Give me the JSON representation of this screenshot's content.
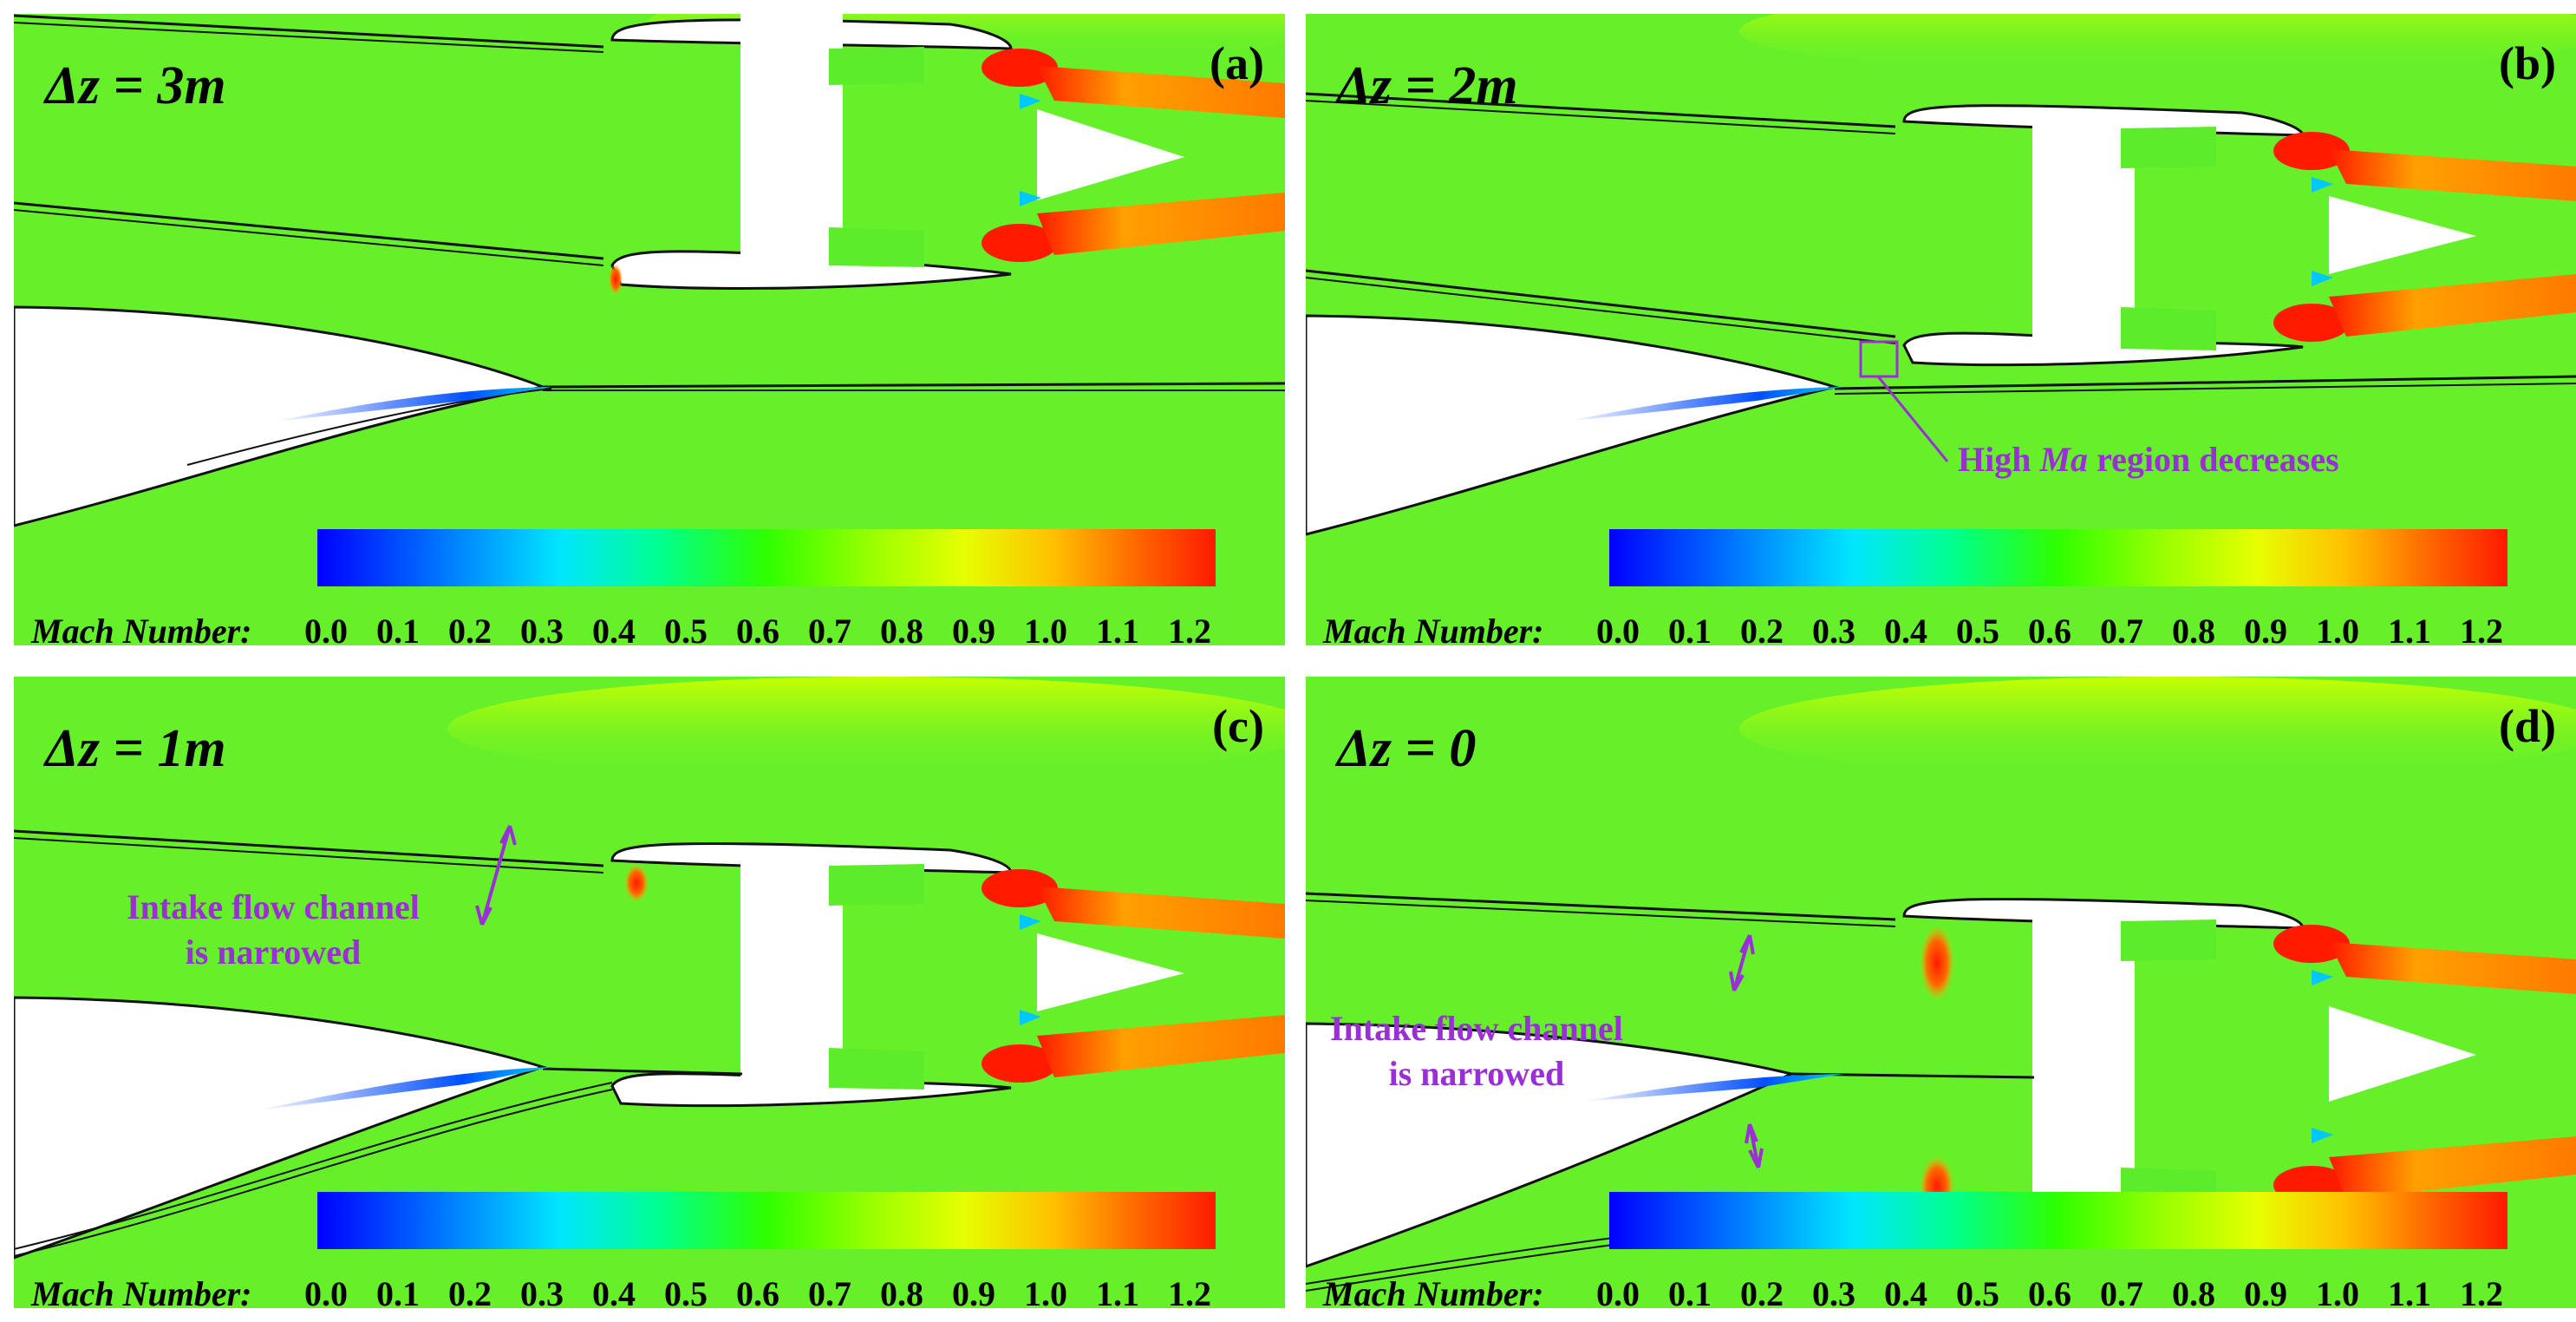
{
  "colorbar": {
    "title": "Mach Number:",
    "ticks": [
      "0.0",
      "0.1",
      "0.2",
      "0.3",
      "0.4",
      "0.5",
      "0.6",
      "0.7",
      "0.8",
      "0.9",
      "1.0",
      "1.1",
      "1.2"
    ],
    "range": [
      0.0,
      1.2
    ],
    "colors": [
      "#0000ff",
      "#00e6ff",
      "#30ff00",
      "#e6ff00",
      "#ff1a00"
    ]
  },
  "panels": [
    {
      "label": "(a)",
      "dz": "Δz = 3m"
    },
    {
      "label": "(b)",
      "dz": "Δz = 2m",
      "annotation": {
        "prefix": "High ",
        "emph": "Ma",
        "suffix": " region decreases"
      }
    },
    {
      "label": "(c)",
      "dz": "Δz = 1m",
      "annotation": {
        "line1": "Intake flow channel",
        "line2": "is narrowed"
      }
    },
    {
      "label": "(d)",
      "dz": "Δz = 0",
      "annotation": {
        "line1": "Intake flow channel",
        "line2": "is narrowed"
      }
    }
  ],
  "colors": {
    "field": "#66f02a",
    "body": "#ffffff",
    "annotation": "#9a2fd6"
  }
}
